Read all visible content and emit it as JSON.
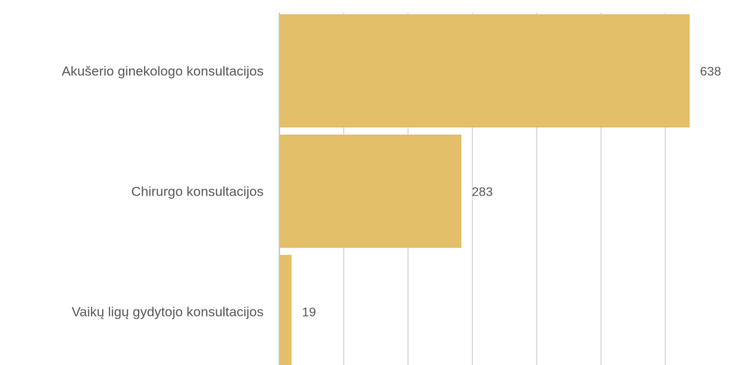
{
  "chart_data": {
    "type": "bar",
    "orientation": "horizontal",
    "title": "",
    "xlabel": "",
    "ylabel": "",
    "categories": [
      "Akušerio ginekologo konsultacijos",
      "Chirurgo konsultacijos",
      "Vaikų ligų gydytojo konsultacijos"
    ],
    "values": [
      638,
      283,
      19
    ],
    "value_labels": [
      "638",
      "283",
      "19"
    ],
    "xlim": [
      0,
      700
    ],
    "gridlines": [
      0,
      100,
      200,
      300,
      400,
      500,
      600
    ],
    "grid": true,
    "legend": "none",
    "colors": {
      "bar": "#e4bf6a",
      "grid": "#d9d9d9",
      "text": "#595959"
    }
  }
}
